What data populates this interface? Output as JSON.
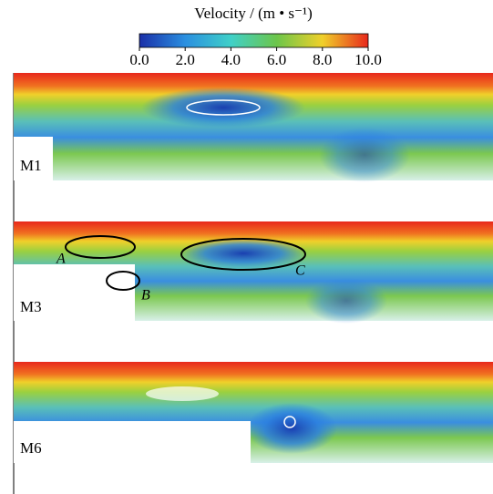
{
  "colorbar": {
    "title": "Velocity / (m • s⁻¹)",
    "range": [
      0,
      10
    ],
    "ticks": [
      {
        "value": 0,
        "label": "0.0"
      },
      {
        "value": 2,
        "label": "2.0"
      },
      {
        "value": 4,
        "label": "4.0"
      },
      {
        "value": 6,
        "label": "6.0"
      },
      {
        "value": 8,
        "label": "8.0"
      },
      {
        "value": 10,
        "label": "10.0"
      }
    ]
  },
  "panels": [
    {
      "label": "M1"
    },
    {
      "label": "M3",
      "annotations": [
        "A",
        "B",
        "C"
      ]
    },
    {
      "label": "M6"
    }
  ]
}
